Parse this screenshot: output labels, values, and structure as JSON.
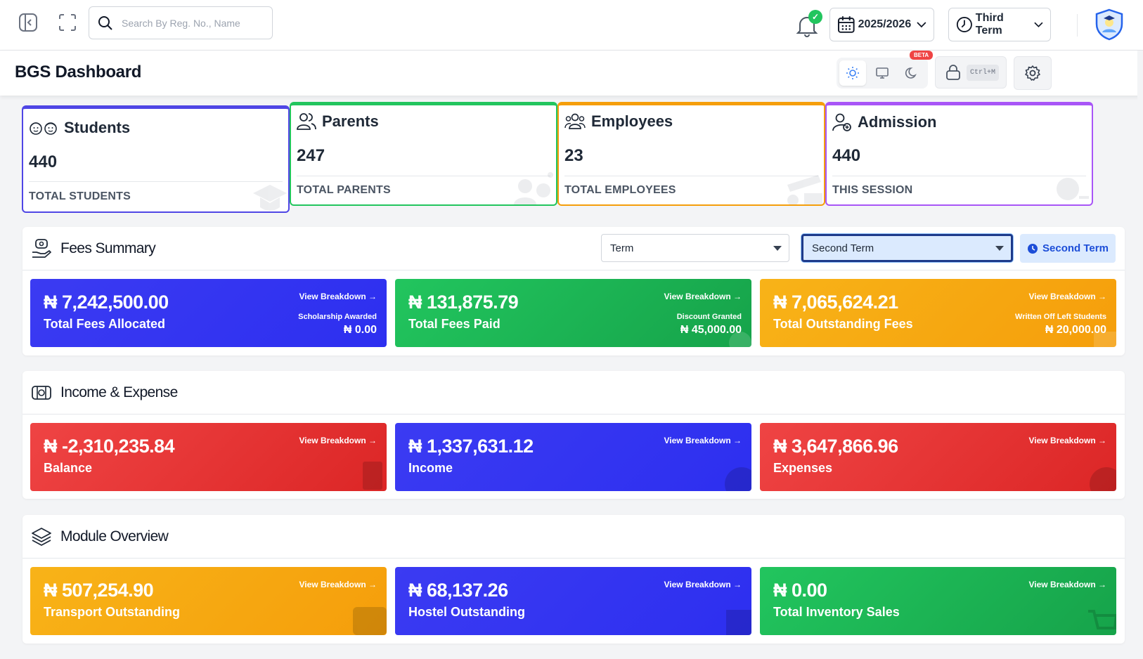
{
  "topbar": {
    "search_placeholder": "Search By Reg. No., Name",
    "session": "2025/2026",
    "term": "Third Term"
  },
  "header": {
    "title": "BGS Dashboard",
    "beta_badge": "BETA",
    "lock_shortcut": "Ctrl+M"
  },
  "stats": [
    {
      "title": "Students",
      "value": "440",
      "label": "TOTAL STUDENTS",
      "color": "#4f46e5"
    },
    {
      "title": "Parents",
      "value": "247",
      "label": "TOTAL PARENTS",
      "color": "#22c55e"
    },
    {
      "title": "Employees",
      "value": "23",
      "label": "TOTAL EMPLOYEES",
      "color": "#f59e0b"
    },
    {
      "title": "Admission",
      "value": "440",
      "label": "THIS SESSION",
      "color": "#a855f7"
    }
  ],
  "fees": {
    "title": "Fees Summary",
    "filter_type": "Term",
    "filter_value": "Second Term",
    "badge": "Second Term",
    "tiles": [
      {
        "amount": "₦ 7,242,500.00",
        "label": "Total Fees Allocated",
        "link": "View Breakdown →",
        "meta_label": "Scholarship Awarded",
        "meta_value": "₦ 0.00"
      },
      {
        "amount": "₦ 131,875.79",
        "label": "Total Fees Paid",
        "link": "View Breakdown →",
        "meta_label": "Discount Granted",
        "meta_value": "₦ 45,000.00"
      },
      {
        "amount": "₦ 7,065,624.21",
        "label": "Total Outstanding Fees",
        "link": "View Breakdown →",
        "meta_label": "Written Off Left Students",
        "meta_value": "₦ 20,000.00"
      }
    ]
  },
  "income": {
    "title": "Income & Expense",
    "tiles": [
      {
        "amount": "₦ -2,310,235.84",
        "label": "Balance",
        "link": "View Breakdown →"
      },
      {
        "amount": "₦ 1,337,631.12",
        "label": "Income",
        "link": "View Breakdown →"
      },
      {
        "amount": "₦ 3,647,866.96",
        "label": "Expenses",
        "link": "View Breakdown →"
      }
    ]
  },
  "modules": {
    "title": "Module Overview",
    "tiles": [
      {
        "amount": "₦ 507,254.90",
        "label": "Transport Outstanding",
        "link": "View Breakdown →"
      },
      {
        "amount": "₦ 68,137.26",
        "label": "Hostel Outstanding",
        "link": "View Breakdown →"
      },
      {
        "amount": "₦ 0.00",
        "label": "Total Inventory Sales",
        "link": "View Breakdown →"
      }
    ]
  }
}
